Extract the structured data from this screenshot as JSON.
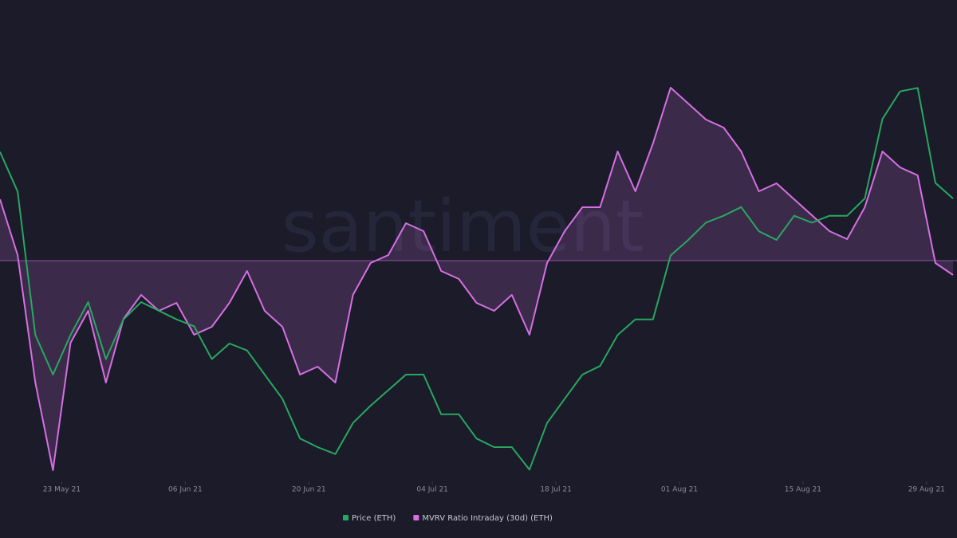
{
  "chart_data": {
    "type": "line",
    "watermark": "santiment",
    "x": [
      "2021-05-16",
      "2021-05-18",
      "2021-05-20",
      "2021-05-22",
      "2021-05-24",
      "2021-05-26",
      "2021-05-28",
      "2021-05-30",
      "2021-06-01",
      "2021-06-03",
      "2021-06-05",
      "2021-06-07",
      "2021-06-09",
      "2021-06-11",
      "2021-06-13",
      "2021-06-15",
      "2021-06-17",
      "2021-06-19",
      "2021-06-21",
      "2021-06-23",
      "2021-06-25",
      "2021-06-27",
      "2021-06-29",
      "2021-07-01",
      "2021-07-03",
      "2021-07-05",
      "2021-07-07",
      "2021-07-09",
      "2021-07-11",
      "2021-07-13",
      "2021-07-15",
      "2021-07-17",
      "2021-07-19",
      "2021-07-21",
      "2021-07-23",
      "2021-07-25",
      "2021-07-27",
      "2021-07-29",
      "2021-07-31",
      "2021-08-02",
      "2021-08-04",
      "2021-08-06",
      "2021-08-08",
      "2021-08-10",
      "2021-08-12",
      "2021-08-14",
      "2021-08-16",
      "2021-08-18",
      "2021-08-20",
      "2021-08-22",
      "2021-08-24",
      "2021-08-26",
      "2021-08-28",
      "2021-08-30",
      "2021-09-01"
    ],
    "xlim": [
      "2021-05-16",
      "2021-09-01"
    ],
    "xticks": [
      {
        "value": "2021-05-23",
        "label": "23 May 21"
      },
      {
        "value": "2021-06-06",
        "label": "06 Jun 21"
      },
      {
        "value": "2021-06-20",
        "label": "20 Jun 21"
      },
      {
        "value": "2021-07-04",
        "label": "04 Jul 21"
      },
      {
        "value": "2021-07-18",
        "label": "18 Jul 21"
      },
      {
        "value": "2021-08-01",
        "label": "01 Aug 21"
      },
      {
        "value": "2021-08-15",
        "label": "15 Aug 21"
      },
      {
        "value": "2021-08-29",
        "label": "29 Aug 21"
      }
    ],
    "ylim": [
      1700,
      4100
    ],
    "y2lim": [
      -27.3,
      24.7
    ],
    "series": [
      {
        "name": "Price (ETH)",
        "color": "#27a85f",
        "values": [
          3590,
          3360,
          2530,
          2300,
          2530,
          2720,
          2390,
          2620,
          2720,
          2670,
          2620,
          2580,
          2390,
          2480,
          2440,
          2300,
          2160,
          1930,
          1880,
          1840,
          2020,
          2120,
          2210,
          2300,
          2300,
          2070,
          2070,
          1930,
          1880,
          1880,
          1750,
          2020,
          2160,
          2300,
          2350,
          2530,
          2620,
          2620,
          2990,
          3080,
          3180,
          3220,
          3270,
          3130,
          3080,
          3220,
          3180,
          3220,
          3220,
          3320,
          3780,
          3940,
          3960,
          3410,
          3320
        ]
      },
      {
        "name": "MVRV Ratio Intraday (30d) (ETH)",
        "color": "#d470e2",
        "axis": "y2",
        "fill": true,
        "values": [
          7.7,
          0.7,
          -15.3,
          -26.3,
          -10.3,
          -6.3,
          -15.3,
          -7.3,
          -4.3,
          -6.3,
          -5.3,
          -9.3,
          -8.3,
          -5.3,
          -1.3,
          -6.3,
          -8.3,
          -14.3,
          -13.3,
          -15.3,
          -4.3,
          -0.3,
          0.7,
          4.7,
          3.7,
          -1.3,
          -2.3,
          -5.3,
          -6.3,
          -4.3,
          -9.3,
          -0.3,
          3.7,
          6.7,
          6.7,
          13.7,
          8.7,
          14.7,
          21.7,
          19.7,
          17.7,
          16.7,
          13.7,
          8.7,
          9.7,
          7.7,
          5.7,
          3.7,
          2.7,
          6.7,
          13.7,
          11.7,
          10.7,
          -0.3,
          -1.8
        ]
      }
    ]
  }
}
